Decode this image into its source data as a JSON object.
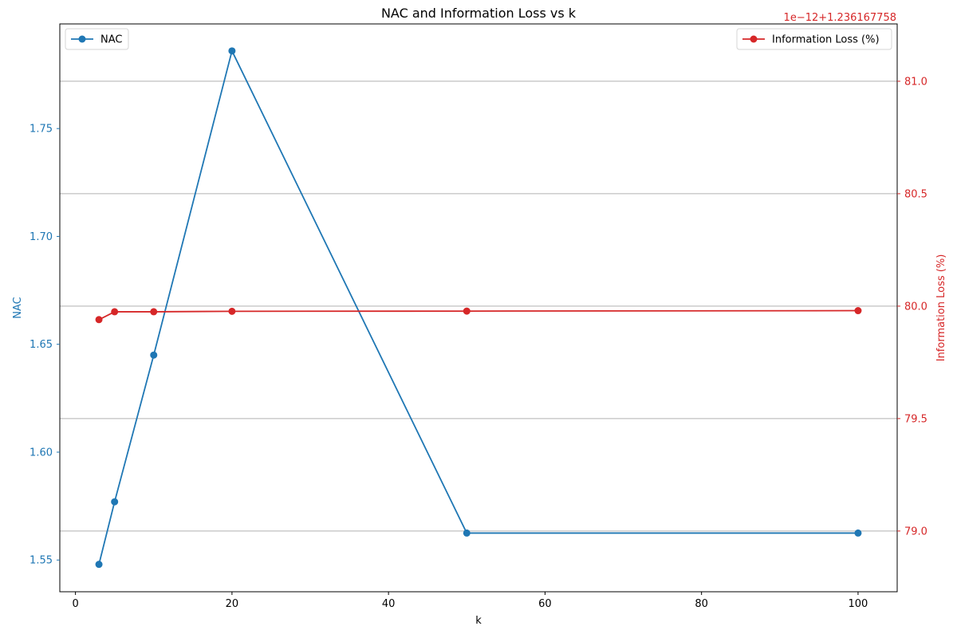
{
  "chart_data": {
    "type": "line",
    "title": "NAC and Information Loss vs k",
    "xlabel": "k",
    "x": [
      3,
      5,
      10,
      20,
      50,
      100
    ],
    "xlim": [
      -2,
      105
    ],
    "xticks": [
      0,
      20,
      40,
      60,
      80,
      100
    ],
    "grid": "horizontal lines at right-axis ticks",
    "series": [
      {
        "name": "NAC",
        "axis": "left",
        "color": "#1f77b4",
        "marker": "circle",
        "values": [
          1.548,
          1.577,
          1.645,
          1.786,
          1.5625,
          1.5625
        ]
      },
      {
        "name": "Information Loss (%)",
        "axis": "right",
        "color": "#d62728",
        "marker": "circle",
        "values": [
          79.94,
          79.975,
          79.975,
          79.977,
          79.978,
          79.98
        ]
      }
    ],
    "left_axis": {
      "label": "NAC",
      "color": "#1f77b4",
      "ylim": [
        1.5353,
        1.7985
      ],
      "ticks": [
        "1.55",
        "1.60",
        "1.65",
        "1.70",
        "1.75"
      ]
    },
    "right_axis": {
      "label": "Information Loss (%)",
      "color": "#d62728",
      "offset_text": "1e−12+1.236167758",
      "ylim": [
        78.73,
        81.255
      ],
      "ticks": [
        "79.0",
        "79.5",
        "80.0",
        "80.5",
        "81.0"
      ]
    },
    "legends": [
      {
        "placement": "upper-left",
        "entries": [
          "NAC"
        ]
      },
      {
        "placement": "upper-right",
        "entries": [
          "Information Loss (%)"
        ]
      }
    ]
  }
}
